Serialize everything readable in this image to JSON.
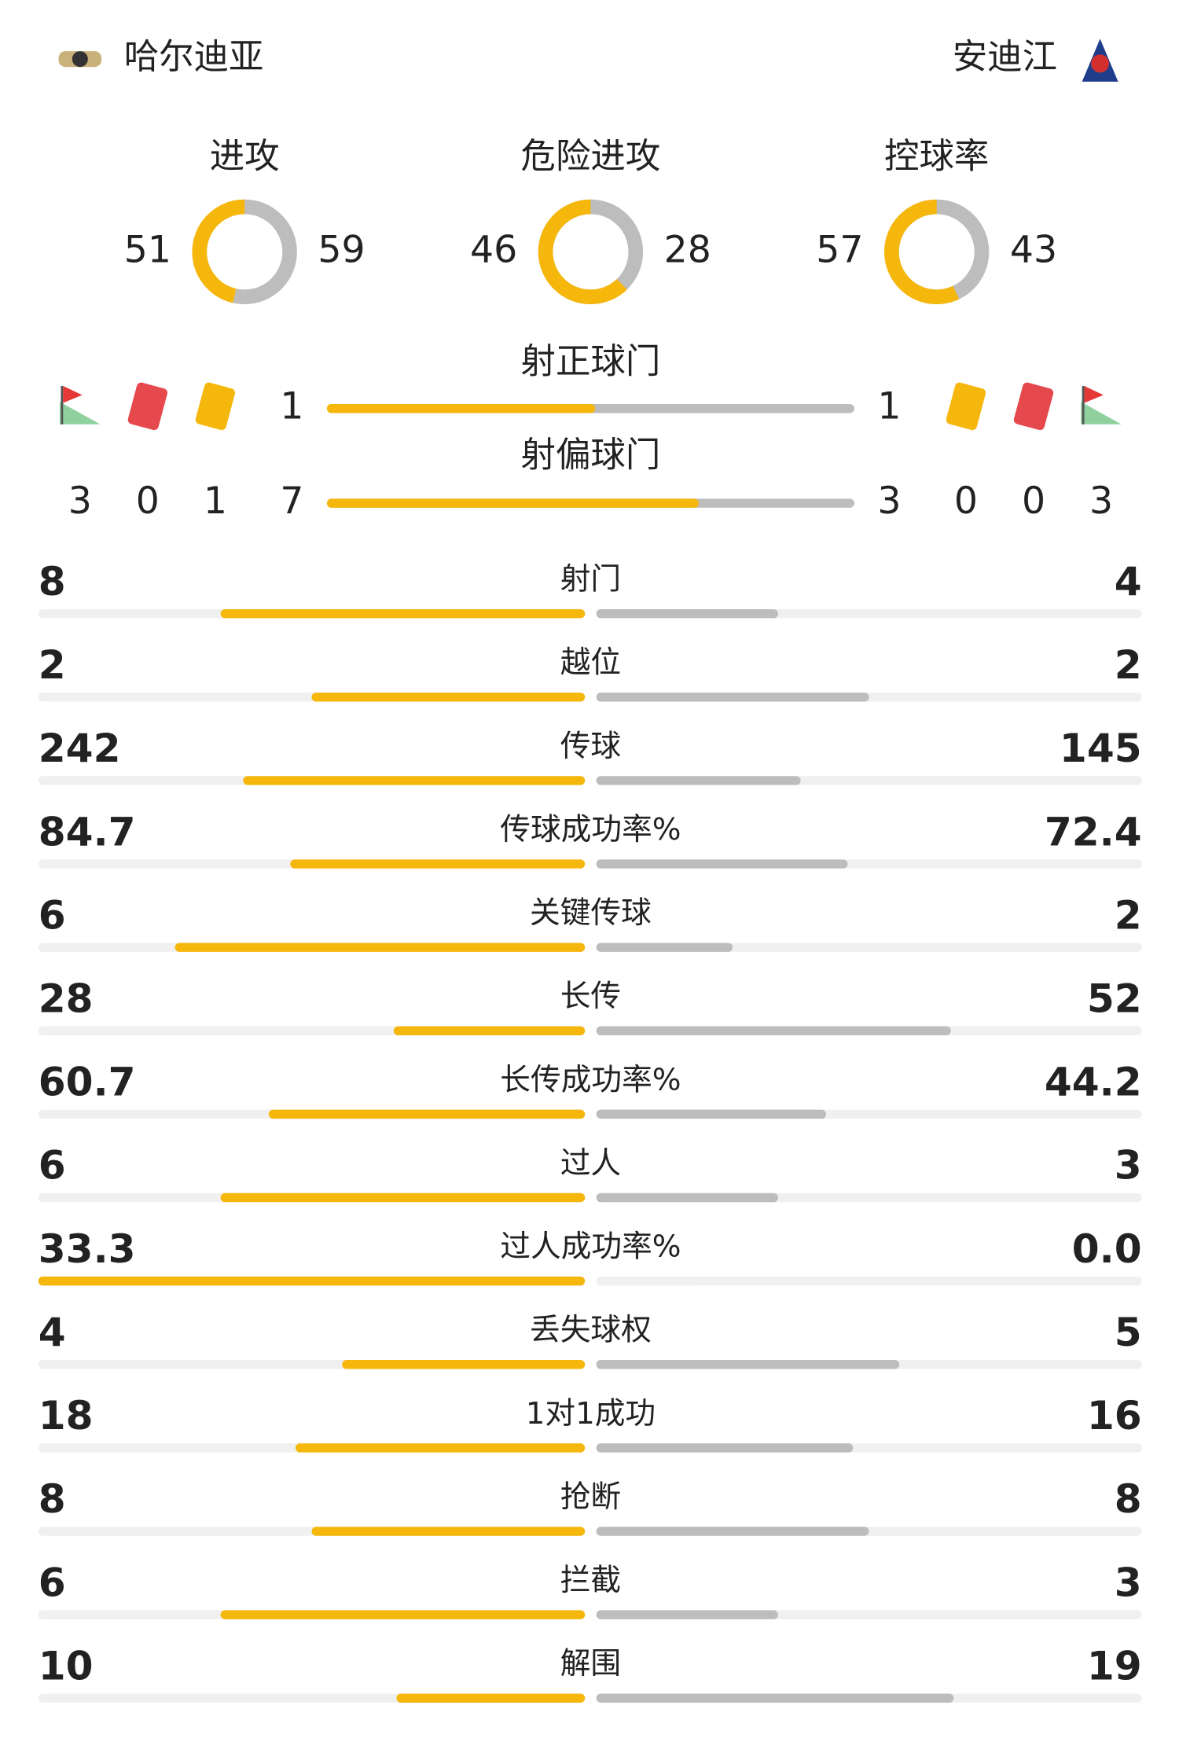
{
  "home": {
    "name": "哈尔迪亚"
  },
  "away": {
    "name": "安迪江"
  },
  "donuts": [
    {
      "label": "进攻",
      "home": 51,
      "away": 59
    },
    {
      "label": "危险进攻",
      "home": 46,
      "away": 28
    },
    {
      "label": "控球率",
      "home": 57,
      "away": 43
    }
  ],
  "shots_on": {
    "label": "射正球门",
    "home": 1,
    "away": 1
  },
  "shots_off": {
    "label": "射偏球门",
    "home": 7,
    "away": 3
  },
  "cards": {
    "home": {
      "corners": 3,
      "red": 0,
      "yellow": 1
    },
    "away": {
      "yellow": 0,
      "red": 0,
      "corners": 3
    }
  },
  "stats": [
    {
      "label": "射门",
      "home": 8,
      "away": 4
    },
    {
      "label": "越位",
      "home": 2,
      "away": 2
    },
    {
      "label": "传球",
      "home": 242,
      "away": 145
    },
    {
      "label": "传球成功率%",
      "home": 84.7,
      "away": 72.4
    },
    {
      "label": "关键传球",
      "home": 6,
      "away": 2
    },
    {
      "label": "长传",
      "home": 28,
      "away": 52
    },
    {
      "label": "长传成功率%",
      "home": 60.7,
      "away": 44.2
    },
    {
      "label": "过人",
      "home": 6,
      "away": 3
    },
    {
      "label": "过人成功率%",
      "home": 33.3,
      "away": {
        "value": 0,
        "label": "0.0"
      }
    },
    {
      "label": "丢失球权",
      "home": 4,
      "away": 5
    },
    {
      "label": "1对1成功",
      "home": 18,
      "away": 16
    },
    {
      "label": "抢断",
      "home": 8,
      "away": 8
    },
    {
      "label": "拦截",
      "home": 6,
      "away": 3
    },
    {
      "label": "解围",
      "home": 10,
      "away": 19
    }
  ]
}
